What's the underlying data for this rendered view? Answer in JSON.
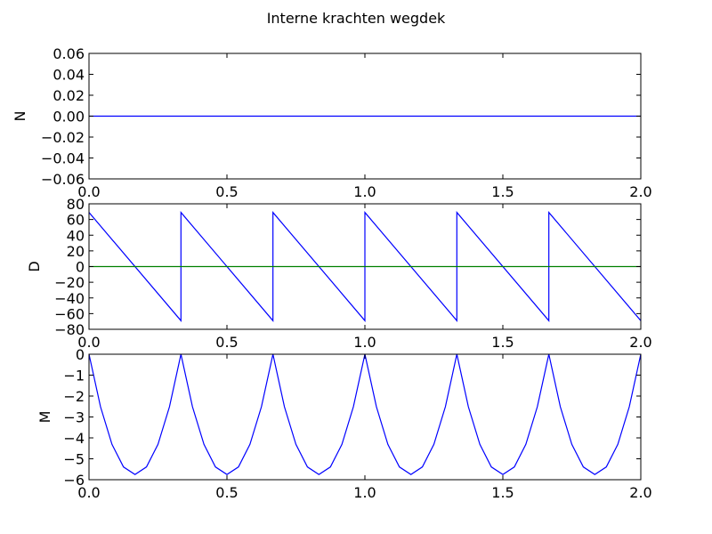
{
  "figure": {
    "title": "Interne krachten wegdek"
  },
  "colors": {
    "line": "#0000ff",
    "baseline": "#008000",
    "axes": "#000000",
    "background": "#ffffff"
  },
  "chart_data": [
    {
      "type": "line",
      "ylabel": "N",
      "xlim": [
        0.0,
        2.0
      ],
      "ylim": [
        -0.06,
        0.06
      ],
      "xticks": [
        "0.0",
        "0.5",
        "1.0",
        "1.5",
        "2.0"
      ],
      "yticks": [
        "0.06",
        "0.04",
        "0.02",
        "0.00",
        "−0.02",
        "−0.04",
        "−0.06"
      ],
      "ytick_values": [
        0.06,
        0.04,
        0.02,
        0.0,
        -0.02,
        -0.04,
        -0.06
      ],
      "series": [
        {
          "color": "#0000ff",
          "x": [
            0.0,
            2.0
          ],
          "y": [
            0.0,
            0.0
          ]
        }
      ]
    },
    {
      "type": "line",
      "ylabel": "D",
      "xlim": [
        0.0,
        2.0
      ],
      "ylim": [
        -80,
        80
      ],
      "xticks": [
        "0.0",
        "0.5",
        "1.0",
        "1.5",
        "2.0"
      ],
      "yticks": [
        "80",
        "60",
        "40",
        "20",
        "0",
        "−20",
        "−40",
        "−60",
        "−80"
      ],
      "ytick_values": [
        80,
        60,
        40,
        20,
        0,
        -20,
        -40,
        -60,
        -80
      ],
      "series": [
        {
          "color": "#0000ff",
          "x": [
            0.0,
            0.3333,
            0.3333,
            0.6667,
            0.6667,
            1.0,
            1.0,
            1.3333,
            1.3333,
            1.6667,
            1.6667,
            2.0
          ],
          "y": [
            69,
            -69,
            69,
            -69,
            69,
            -69,
            69,
            -69,
            69,
            -69,
            69,
            -69
          ]
        },
        {
          "color": "#008000",
          "x": [
            0.0,
            2.0
          ],
          "y": [
            0,
            0
          ]
        }
      ]
    },
    {
      "type": "line",
      "ylabel": "M",
      "xlim": [
        0.0,
        2.0
      ],
      "ylim": [
        -6,
        0
      ],
      "xticks": [
        "0.0",
        "0.5",
        "1.0",
        "1.5",
        "2.0"
      ],
      "yticks": [
        "0",
        "−1",
        "−2",
        "−3",
        "−4",
        "−5",
        "−6"
      ],
      "ytick_values": [
        0,
        -1,
        -2,
        -3,
        -4,
        -5,
        -6
      ],
      "series": [
        {
          "color": "#0000ff",
          "x": [
            0.0,
            0.0417,
            0.0833,
            0.125,
            0.1667,
            0.2083,
            0.25,
            0.2917,
            0.3333,
            0.375,
            0.4167,
            0.4583,
            0.5,
            0.5417,
            0.5833,
            0.625,
            0.6667,
            0.7083,
            0.75,
            0.7917,
            0.8333,
            0.875,
            0.9167,
            0.9583,
            1.0,
            1.0417,
            1.0833,
            1.125,
            1.1667,
            1.2083,
            1.25,
            1.2917,
            1.3333,
            1.375,
            1.4167,
            1.4583,
            1.5,
            1.5417,
            1.5833,
            1.625,
            1.6667,
            1.7083,
            1.75,
            1.7917,
            1.8333,
            1.875,
            1.9167,
            1.9583,
            2.0
          ],
          "y": [
            0.0,
            -2.51,
            -4.31,
            -5.39,
            -5.75,
            -5.39,
            -4.31,
            -2.51,
            0.0,
            -2.51,
            -4.31,
            -5.39,
            -5.75,
            -5.39,
            -4.31,
            -2.51,
            0.0,
            -2.51,
            -4.31,
            -5.39,
            -5.75,
            -5.39,
            -4.31,
            -2.51,
            0.0,
            -2.51,
            -4.31,
            -5.39,
            -5.75,
            -5.39,
            -4.31,
            -2.51,
            0.0,
            -2.51,
            -4.31,
            -5.39,
            -5.75,
            -5.39,
            -4.31,
            -2.51,
            0.0,
            -2.51,
            -4.31,
            -5.39,
            -5.75,
            -5.39,
            -4.31,
            -2.51,
            0.0
          ]
        }
      ]
    }
  ]
}
